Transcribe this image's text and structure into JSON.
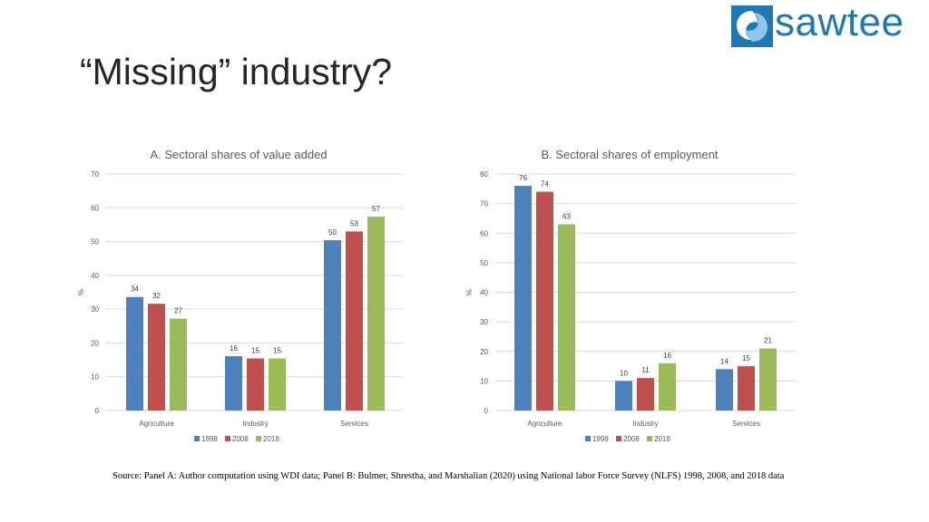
{
  "slide": {
    "title": "“Missing” industry?",
    "logo_text": "sawtee",
    "source": "Source: Panel A: Author computation using WDI data; Panel B:  Bulmer, Shrestha, and Marshalian (2020) using National labor Force Survey (NLFS) 1998, 2008, and 2018 data"
  },
  "colors": {
    "series_1998": "#4f81bd",
    "series_2008": "#c0504d",
    "series_2018": "#9bbb59",
    "gridline": "#d9d9d9",
    "brand": "#1f78b4"
  },
  "chart_data": [
    {
      "type": "bar",
      "title": "A. Sectoral shares of value added",
      "categories": [
        "Agriculture",
        "Industry",
        "Services"
      ],
      "series": [
        {
          "name": "1998",
          "values": [
            34,
            16,
            50
          ]
        },
        {
          "name": "2008",
          "values": [
            32,
            15,
            53
          ]
        },
        {
          "name": "2018",
          "values": [
            27,
            15,
            57
          ]
        }
      ],
      "plot_values": [
        [
          33.6,
          16.1,
          50.4
        ],
        [
          31.6,
          15.4,
          53.0
        ],
        [
          27.2,
          15.4,
          57.4
        ]
      ],
      "ylabel": "%",
      "ylim": [
        0,
        70
      ],
      "yticks": [
        0,
        10,
        20,
        30,
        40,
        50,
        60,
        70
      ],
      "grid": true,
      "legend": "bottom"
    },
    {
      "type": "bar",
      "title": "B. Sectoral shares of employment",
      "categories": [
        "Agriculture",
        "Industry",
        "Services"
      ],
      "series": [
        {
          "name": "1998",
          "values": [
            76,
            10,
            14
          ]
        },
        {
          "name": "2008",
          "values": [
            74,
            11,
            15
          ]
        },
        {
          "name": "2018",
          "values": [
            63,
            16,
            21
          ]
        }
      ],
      "plot_values": [
        [
          76,
          10,
          14
        ],
        [
          74,
          11,
          15
        ],
        [
          63,
          16,
          21
        ]
      ],
      "ylabel": "%",
      "ylim": [
        0,
        80
      ],
      "yticks": [
        0,
        10,
        20,
        30,
        40,
        50,
        60,
        70,
        80
      ],
      "grid": true,
      "legend": "bottom"
    }
  ]
}
